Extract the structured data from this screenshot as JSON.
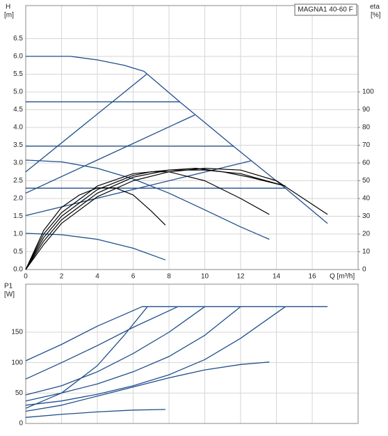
{
  "chart_data": [
    {
      "type": "line",
      "title": "MAGNA1 40-60 F",
      "ylabel": "H",
      "yunit": "[m]",
      "y2label": "eta",
      "y2unit": "[%]",
      "xlabel": "Q [m³/h]",
      "xlim": [
        0,
        18.56
      ],
      "ylim": [
        0,
        7.43
      ],
      "y2lim": [
        0,
        148.6
      ],
      "grid": true,
      "xticks": [
        0,
        2,
        4,
        6,
        8,
        10,
        12,
        14,
        16
      ],
      "yticks": [
        {
          "value": 0,
          "label": "0.0"
        },
        0.5,
        {
          "value": 1,
          "label": "1.0"
        },
        1.5,
        {
          "value": 2,
          "label": "2.0"
        },
        2.5,
        {
          "value": 3,
          "label": "3.0"
        },
        3.5,
        {
          "value": 4,
          "label": "4.0"
        },
        4.5,
        {
          "value": 5,
          "label": "5.0"
        },
        5.5,
        {
          "value": 6,
          "label": "6.0"
        },
        6.5
      ],
      "y2ticks": [
        0,
        10,
        20,
        30,
        40,
        50,
        60,
        70,
        80,
        90,
        100
      ],
      "series": [
        {
          "color": "#1f4e8c",
          "x": [
            0,
            2.5,
            4,
            5.5,
            6.6,
            8.6,
            11.6,
            14.5,
            16.85
          ],
          "values": [
            6.0,
            6.0,
            5.9,
            5.75,
            5.58,
            4.72,
            3.47,
            2.29,
            1.3
          ]
        },
        {
          "color": "#1f4e8c",
          "x": [
            0,
            2,
            4,
            6,
            8,
            10,
            12,
            13.6
          ],
          "values": [
            3.08,
            3.03,
            2.85,
            2.55,
            2.15,
            1.68,
            1.2,
            0.85
          ]
        },
        {
          "color": "#1f4e8c",
          "x": [
            0,
            2,
            4,
            6,
            7.8
          ],
          "values": [
            1.02,
            0.98,
            0.85,
            0.6,
            0.27
          ]
        },
        {
          "color": "#1f4e8c",
          "x": [
            0,
            6.76
          ],
          "values": [
            2.75,
            5.5
          ]
        },
        {
          "color": "#1f4e8c",
          "x": [
            0,
            9.44
          ],
          "values": [
            2.15,
            4.35
          ]
        },
        {
          "color": "#1f4e8c",
          "x": [
            0,
            12.58
          ],
          "values": [
            1.52,
            3.06
          ]
        },
        {
          "color": "#1f4e8c",
          "x": [
            0,
            8.6
          ],
          "values": [
            4.72,
            4.72
          ]
        },
        {
          "color": "#1f4e8c",
          "x": [
            0,
            11.6
          ],
          "values": [
            3.47,
            3.47
          ]
        },
        {
          "color": "#1f4e8c",
          "x": [
            0,
            14.5
          ],
          "values": [
            2.29,
            2.29
          ]
        },
        {
          "color": "#000000",
          "axis": "y2",
          "x": [
            0,
            1,
            2,
            3,
            4,
            5,
            6,
            7,
            7.8
          ],
          "values": [
            0,
            22,
            35,
            42,
            46,
            46,
            42,
            33,
            25
          ]
        },
        {
          "color": "#000000",
          "axis": "y2",
          "x": [
            0,
            1,
            2,
            4,
            6,
            7,
            8,
            10,
            12,
            13.6
          ],
          "values": [
            0,
            18,
            30,
            45,
            53,
            55,
            55,
            50,
            40,
            31
          ]
        },
        {
          "color": "#000000",
          "axis": "y2",
          "x": [
            0,
            1,
            2,
            4,
            6,
            8,
            9.5,
            11,
            12.5,
            14.5
          ],
          "values": [
            0,
            16,
            28,
            43,
            52,
            56,
            57,
            55,
            52,
            47
          ]
        },
        {
          "color": "#000000",
          "axis": "y2",
          "x": [
            0,
            1,
            2,
            4,
            6,
            8,
            10,
            12,
            14,
            16.85
          ],
          "values": [
            0,
            14,
            26,
            41,
            50,
            55,
            57,
            56,
            50,
            31
          ]
        },
        {
          "color": "#000000",
          "axis": "y2",
          "x": [
            0,
            1,
            2,
            4,
            6,
            8,
            10,
            12,
            14.5
          ],
          "values": [
            0,
            20,
            32,
            47,
            54,
            56,
            56,
            54,
            47
          ]
        }
      ]
    },
    {
      "type": "line",
      "ylabel": "P1",
      "yunit": "[W]",
      "xlim": [
        0,
        18.56
      ],
      "ylim": [
        0,
        229
      ],
      "grid": true,
      "yticks": [
        0,
        50,
        100,
        150
      ],
      "series": [
        {
          "color": "#1f4e8c",
          "x": [
            0,
            2,
            4,
            6.5,
            16.85
          ],
          "values": [
            103,
            130,
            160,
            192,
            192
          ]
        },
        {
          "color": "#1f4e8c",
          "x": [
            0,
            2,
            4,
            6,
            8.5
          ],
          "values": [
            73,
            100,
            128,
            158,
            192
          ]
        },
        {
          "color": "#1f4e8c",
          "x": [
            0,
            2,
            4,
            6,
            8,
            10
          ],
          "values": [
            47,
            62,
            85,
            115,
            150,
            192
          ]
        },
        {
          "color": "#1f4e8c",
          "x": [
            0,
            2,
            4,
            6,
            8,
            10,
            12
          ],
          "values": [
            37,
            50,
            65,
            85,
            110,
            145,
            192
          ]
        },
        {
          "color": "#1f4e8c",
          "x": [
            0,
            2,
            4,
            6,
            8,
            10,
            12,
            14.5
          ],
          "values": [
            30,
            37,
            48,
            62,
            80,
            105,
            140,
            192
          ]
        },
        {
          "color": "#1f4e8c",
          "x": [
            0,
            2,
            4,
            5.5,
            6.8
          ],
          "values": [
            25,
            50,
            95,
            145,
            192
          ]
        },
        {
          "color": "#1f4e8c",
          "x": [
            0,
            2,
            4,
            6,
            8,
            10,
            12,
            13.6
          ],
          "values": [
            20,
            30,
            45,
            60,
            75,
            88,
            97,
            101
          ]
        },
        {
          "color": "#1f4e8c",
          "x": [
            0,
            2,
            4,
            6,
            7.8
          ],
          "values": [
            10,
            15,
            19,
            22,
            23
          ]
        }
      ]
    }
  ]
}
